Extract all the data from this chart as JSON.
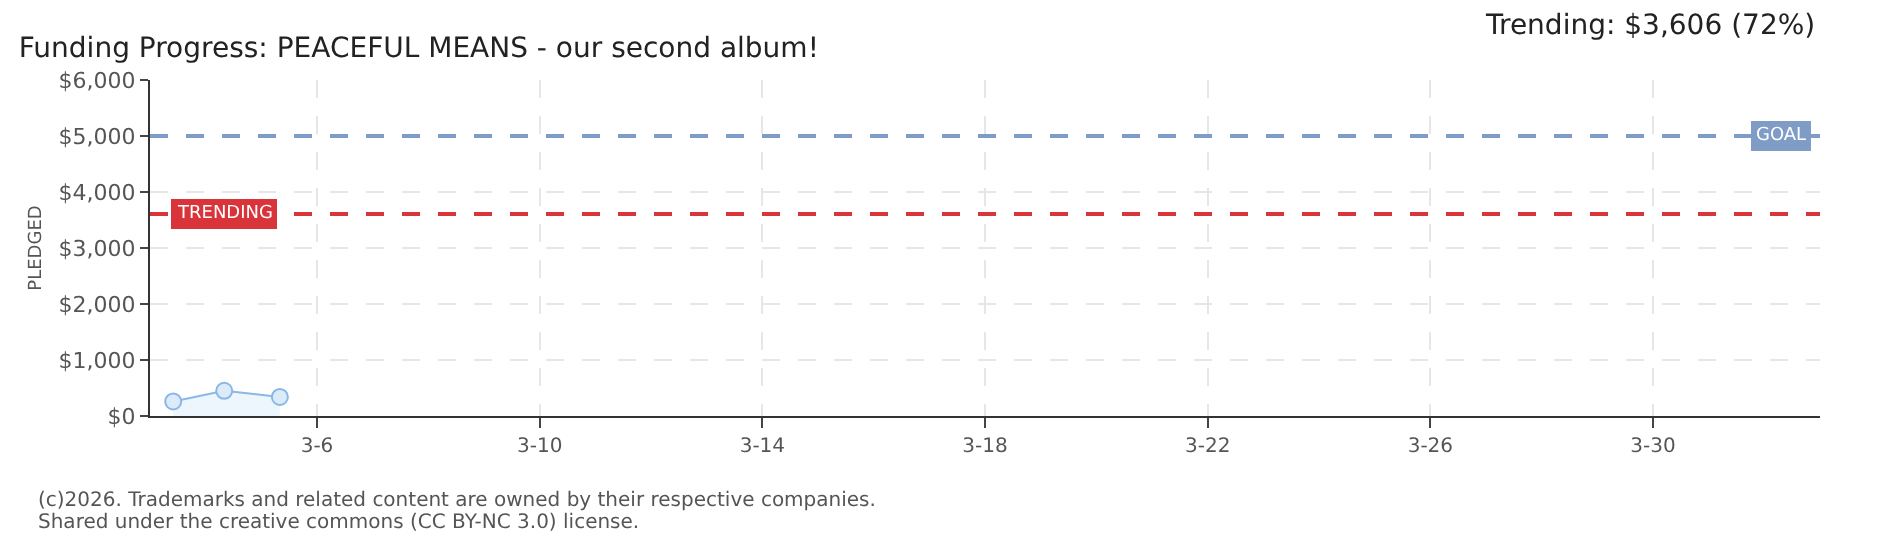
{
  "chart_data": {
    "type": "area",
    "title": "Funding Progress: PEACEFUL MEANS - our second album!",
    "ylabel": "PLEDGED",
    "annotations": [
      "Trending: $3,606 (72%)",
      "(c)2026. Trademarks and related content are owned by their respective companies.",
      "Shared under the creative commons (CC BY-NC 3.0) license."
    ],
    "x": [
      "2026-03-03T10:00",
      "2026-03-04T08:00",
      "2026-03-05T08:00"
    ],
    "series": [
      {
        "color": "#8ab8e6",
        "values": [
          260,
          450,
          340
        ]
      }
    ],
    "xlim": [
      "2026-03-03",
      "2026-04-02"
    ],
    "xticks": [
      {
        "value": "2026-03-06",
        "label": "3-6"
      },
      {
        "value": "2026-03-10",
        "label": "3-10"
      },
      {
        "value": "2026-03-14",
        "label": "3-14"
      },
      {
        "value": "2026-03-18",
        "label": "3-18"
      },
      {
        "value": "2026-03-22",
        "label": "3-22"
      },
      {
        "value": "2026-03-26",
        "label": "3-26"
      },
      {
        "value": "2026-03-30",
        "label": "3-30"
      }
    ],
    "ylim": [
      0,
      6000
    ],
    "yticks": [
      {
        "value": 0,
        "label": "$0"
      },
      {
        "value": 1000,
        "label": "$1,000"
      },
      {
        "value": 2000,
        "label": "$2,000"
      },
      {
        "value": 3000,
        "label": "$3,000"
      },
      {
        "value": 4000,
        "label": "$4,000"
      },
      {
        "value": 5000,
        "label": "$5,000"
      },
      {
        "value": 6000,
        "label": "$6,000"
      }
    ],
    "ref_lines": [
      {
        "axis": "y",
        "value": 5000,
        "label": "GOAL",
        "color": "#7f9cc6",
        "line_style": "dashed"
      },
      {
        "axis": "y",
        "value": 3606,
        "label": "TRENDING",
        "color": "#d9343a",
        "line_style": "dashed"
      }
    ],
    "grid": true,
    "marker": "circle",
    "line_style": "solid"
  }
}
